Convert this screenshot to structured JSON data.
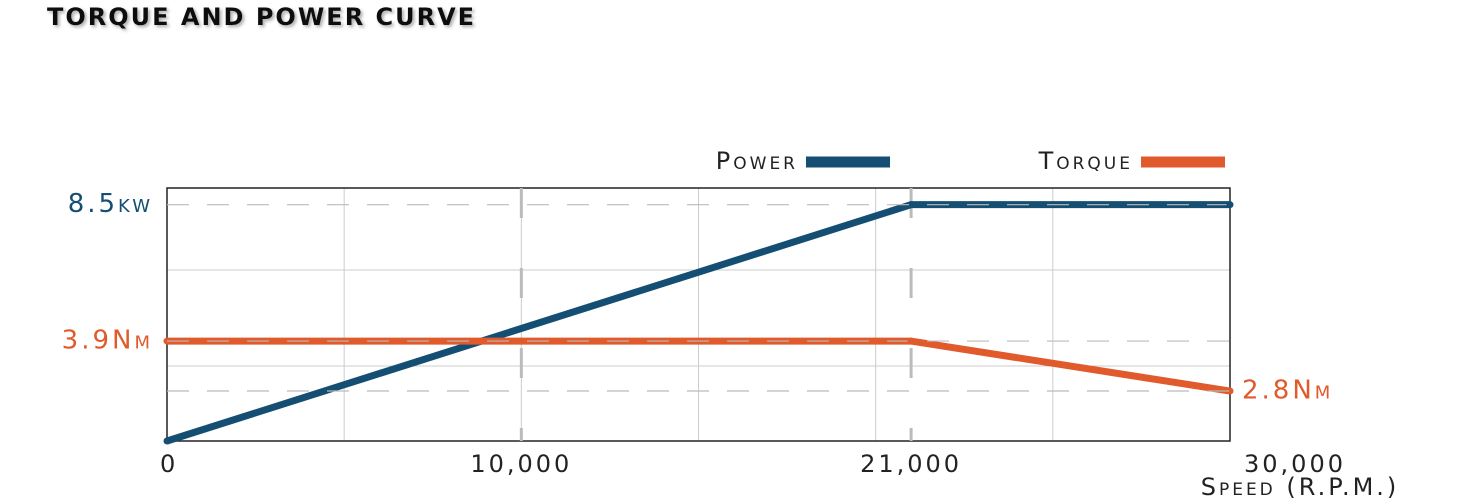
{
  "chart_data": {
    "type": "line",
    "title": "TORQUE AND POWER CURVE",
    "x_label": "Speed (R.P.M.)",
    "x": [
      0,
      21000,
      30000
    ],
    "series": [
      {
        "name": "Power",
        "color": "#154e73",
        "values": [
          0,
          8.5,
          8.5
        ],
        "value_labels": [
          null,
          "8.5kw",
          null
        ]
      },
      {
        "name": "Torque",
        "color": "#e15a2c",
        "axis": "y2",
        "values": [
          3.9,
          3.9,
          2.8
        ],
        "value_labels": [
          "3.9Nm",
          null,
          "2.8Nm"
        ]
      }
    ],
    "xlim": [
      0,
      30000
    ],
    "xticks": [
      0,
      {
        "value": 10000,
        "label": "10,000"
      },
      {
        "value": 21000,
        "label": "21,000"
      },
      {
        "value": 30000,
        "label": "30,000"
      }
    ],
    "ylim": [
      0,
      9.1
    ],
    "y2lim": [
      1.7,
      7.27
    ],
    "grid": true,
    "legend": "top-right"
  }
}
